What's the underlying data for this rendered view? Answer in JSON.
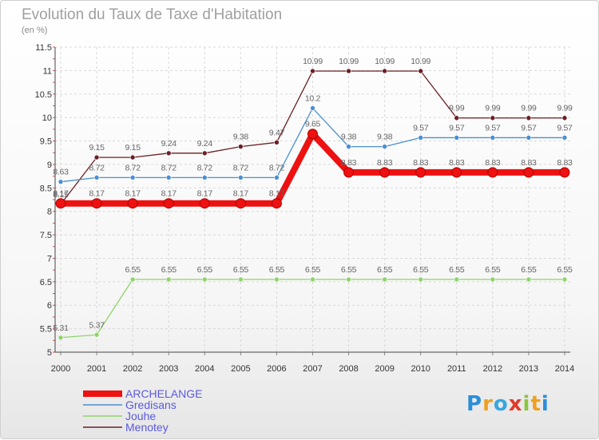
{
  "chart_data": {
    "type": "line",
    "title": "Evolution du Taux de Taxe d'Habitation",
    "subtitle": "(en %)",
    "xlabel": "",
    "ylabel": "",
    "ylim": [
      5,
      11.5
    ],
    "yticks": [
      "5",
      "5.5",
      "6",
      "6.5",
      "7",
      "7.5",
      "8",
      "8.5",
      "9",
      "9.5",
      "10",
      "10.5",
      "11",
      "11.5"
    ],
    "categories": [
      "2000",
      "2001",
      "2002",
      "2003",
      "2004",
      "2005",
      "2006",
      "2007",
      "2008",
      "2009",
      "2010",
      "2011",
      "2012",
      "2013",
      "2014"
    ],
    "grid": true,
    "legend_position": "bottom-left",
    "series": [
      {
        "name": "Menotey",
        "color": "#6b1f24",
        "values": [
          8.15,
          9.15,
          9.15,
          9.24,
          9.24,
          9.38,
          9.47,
          10.99,
          10.99,
          10.99,
          10.99,
          9.99,
          9.99,
          9.99,
          9.99
        ],
        "labels": [
          "8.15",
          "9.15",
          "9.15",
          "9.24",
          "9.24",
          "9.38",
          "9.47",
          "10.99",
          "10.99",
          "10.99",
          "10.99",
          "9.99",
          "9.99",
          "9.99",
          "9.99"
        ]
      },
      {
        "name": "Gredisans",
        "color": "#4a8fd0",
        "values": [
          8.63,
          8.72,
          8.72,
          8.72,
          8.72,
          8.72,
          8.72,
          10.2,
          9.38,
          9.38,
          9.57,
          9.57,
          9.57,
          9.57,
          9.57
        ],
        "labels": [
          "8.63",
          "8.72",
          "8.72",
          "8.72",
          "8.72",
          "8.72",
          "8.72",
          "10.2",
          "9.38",
          "9.38",
          "9.57",
          "9.57",
          "9.57",
          "9.57",
          "9.57"
        ]
      },
      {
        "name": "Jouhe",
        "color": "#8fd36a",
        "values": [
          5.31,
          5.37,
          6.55,
          6.55,
          6.55,
          6.55,
          6.55,
          6.55,
          6.55,
          6.55,
          6.55,
          6.55,
          6.55,
          6.55,
          6.55
        ],
        "labels": [
          "5.31",
          "5.37",
          "6.55",
          "6.55",
          "6.55",
          "6.55",
          "6.55",
          "6.55",
          "6.55",
          "6.55",
          "6.55",
          "6.55",
          "6.55",
          "6.55",
          "6.55"
        ]
      },
      {
        "name": "ARCHELANGE",
        "color": "#ee1111",
        "values": [
          8.17,
          8.17,
          8.17,
          8.17,
          8.17,
          8.17,
          8.17,
          9.65,
          8.83,
          8.83,
          8.83,
          8.83,
          8.83,
          8.83,
          8.83
        ],
        "labels": [
          "8.17",
          "8.17",
          "8.17",
          "8.17",
          "8.17",
          "8.17",
          "8.17",
          "9.65",
          "8.83",
          "8.83",
          "8.83",
          "8.83",
          "8.83",
          "8.83",
          "8.83"
        ]
      }
    ],
    "legend": [
      "ARCHELANGE",
      "Gredisans",
      "Jouhe",
      "Menotey"
    ]
  },
  "logo": {
    "text": "Proxiti",
    "letters": [
      "P",
      "r",
      "o",
      "x",
      "i",
      "t",
      "i"
    ],
    "colors": [
      "#2a8fd8",
      "#f0a020",
      "#3aa6e0",
      "#e03a2a",
      "#8cc63f",
      "#f0a020",
      "#2a8fd8"
    ]
  }
}
